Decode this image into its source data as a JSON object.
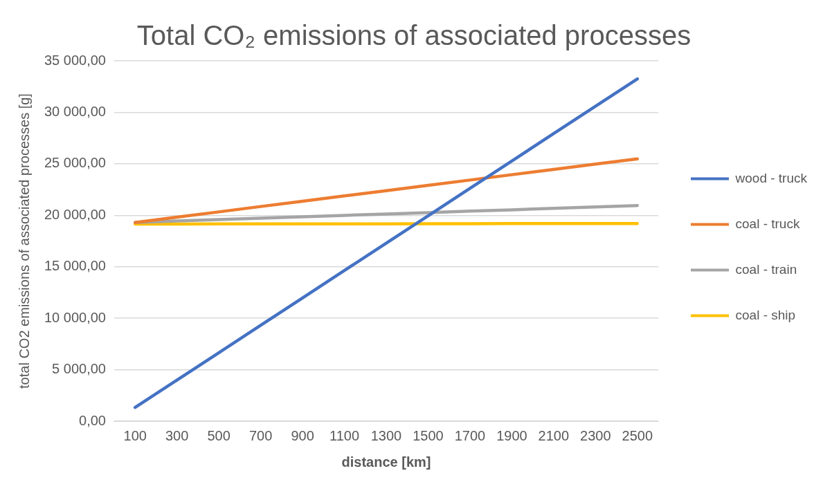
{
  "chart_data": {
    "type": "line",
    "title": "Total CO₂ emissions of associated processes",
    "xlabel": "distance [km]",
    "ylabel": "total CO2 emissions of associated processes [g]",
    "categories": [
      "100",
      "300",
      "500",
      "700",
      "900",
      "1100",
      "1300",
      "1500",
      "1700",
      "1900",
      "2100",
      "2300",
      "2500"
    ],
    "series": [
      {
        "name": "wood - truck",
        "color": "#4472c4",
        "values": [
          1330,
          3990,
          6650,
          9310,
          11970,
          14630,
          17290,
          19950,
          22610,
          25270,
          27930,
          30590,
          33250
        ]
      },
      {
        "name": "coal - truck",
        "color": "#ed7d31",
        "values": [
          19300,
          19820,
          20330,
          20850,
          21360,
          21880,
          22390,
          22910,
          23420,
          23940,
          24450,
          24970,
          25480
        ]
      },
      {
        "name": "coal - train",
        "color": "#a5a5a5",
        "values": [
          19300,
          19440,
          19580,
          19710,
          19850,
          19990,
          20120,
          20260,
          20400,
          20530,
          20670,
          20810,
          20950
        ]
      },
      {
        "name": "coal - ship",
        "color": "#ffc000",
        "values": [
          19150,
          19150,
          19160,
          19160,
          19170,
          19170,
          19170,
          19180,
          19180,
          19190,
          19190,
          19200,
          19200
        ]
      }
    ],
    "ylim": [
      0,
      35000
    ],
    "yticks": [
      {
        "value": 0,
        "label": "0,00"
      },
      {
        "value": 5000,
        "label": "5 000,00"
      },
      {
        "value": 10000,
        "label": "10 000,00"
      },
      {
        "value": 15000,
        "label": "15 000,00"
      },
      {
        "value": 20000,
        "label": "20 000,00"
      },
      {
        "value": 25000,
        "label": "25 000,00"
      },
      {
        "value": 30000,
        "label": "30 000,00"
      },
      {
        "value": 35000,
        "label": "35 000,00"
      }
    ],
    "grid": "y",
    "legend": "right",
    "marker": "none",
    "line_style": "solid"
  }
}
